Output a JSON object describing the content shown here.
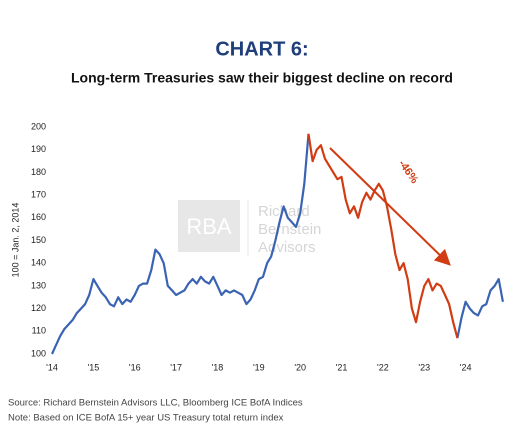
{
  "chart_data": {
    "type": "line",
    "title": "CHART 6:",
    "subtitle": "Long-term Treasuries saw their biggest decline on record",
    "y_label": "100 = Jan. 2, 2014",
    "annotation": "-46%",
    "watermark": [
      "RBA",
      "Richard",
      "Bernstein",
      "Advisors"
    ],
    "notes": [
      "Source: Richard Bernstein Advisors LLC, Bloomberg ICE BofA Indices",
      "Note: Based on ICE BofA 15+ year US Treasury total return index"
    ],
    "x": [
      2014.0,
      2014.1,
      2014.2,
      2014.3,
      2014.4,
      2014.5,
      2014.6,
      2014.7,
      2014.8,
      2014.9,
      2015.0,
      2015.1,
      2015.2,
      2015.3,
      2015.4,
      2015.5,
      2015.6,
      2015.7,
      2015.8,
      2015.9,
      2016.0,
      2016.1,
      2016.2,
      2016.3,
      2016.4,
      2016.5,
      2016.6,
      2016.7,
      2016.8,
      2016.9,
      2017.0,
      2017.1,
      2017.2,
      2017.3,
      2017.4,
      2017.5,
      2017.6,
      2017.7,
      2017.8,
      2017.9,
      2018.0,
      2018.1,
      2018.2,
      2018.3,
      2018.4,
      2018.5,
      2018.6,
      2018.7,
      2018.8,
      2018.9,
      2019.0,
      2019.1,
      2019.2,
      2019.3,
      2019.4,
      2019.5,
      2019.6,
      2019.7,
      2019.8,
      2019.9,
      2020.0,
      2020.1,
      2020.2,
      2020.3,
      2020.4,
      2020.5,
      2020.6,
      2020.7,
      2020.8,
      2020.9,
      2021.0,
      2021.1,
      2021.2,
      2021.3,
      2021.4,
      2021.5,
      2021.6,
      2021.7,
      2021.8,
      2021.9,
      2022.0,
      2022.1,
      2022.2,
      2022.3,
      2022.4,
      2022.5,
      2022.6,
      2022.7,
      2022.8,
      2022.9,
      2023.0,
      2023.1,
      2023.2,
      2023.3,
      2023.4,
      2023.5,
      2023.6,
      2023.7,
      2023.8,
      2023.9,
      2024.0,
      2024.1,
      2024.2,
      2024.3,
      2024.4,
      2024.5,
      2024.6,
      2024.7,
      2024.8,
      2024.9
    ],
    "series": [
      {
        "color": "#3b63b3",
        "values": [
          100,
          104,
          108,
          111,
          113,
          115,
          118,
          120,
          122,
          126,
          133,
          130,
          127,
          125,
          122,
          121,
          125,
          122,
          124,
          123,
          126,
          130,
          131,
          131,
          137,
          146,
          144,
          140,
          130,
          128,
          126,
          127,
          128,
          131,
          133,
          131,
          134,
          132,
          131,
          134,
          130,
          126,
          128,
          127,
          128,
          127,
          126,
          122,
          124,
          128,
          133,
          134,
          140,
          143,
          150,
          158,
          165,
          160,
          158,
          156,
          162,
          175,
          197,
          null,
          null,
          null,
          null,
          null,
          null,
          null,
          null,
          null,
          null,
          null,
          null,
          null,
          null,
          null,
          null,
          null,
          null,
          null,
          null,
          null,
          null,
          null,
          null,
          null,
          null,
          null,
          null,
          null,
          null,
          null,
          null,
          null,
          null,
          null,
          107,
          116,
          123,
          120,
          118,
          117,
          121,
          122,
          128,
          130,
          133,
          123
        ]
      },
      {
        "color": "#d13c12",
        "values": [
          null,
          null,
          null,
          null,
          null,
          null,
          null,
          null,
          null,
          null,
          null,
          null,
          null,
          null,
          null,
          null,
          null,
          null,
          null,
          null,
          null,
          null,
          null,
          null,
          null,
          null,
          null,
          null,
          null,
          null,
          null,
          null,
          null,
          null,
          null,
          null,
          null,
          null,
          null,
          null,
          null,
          null,
          null,
          null,
          null,
          null,
          null,
          null,
          null,
          null,
          null,
          null,
          null,
          null,
          null,
          null,
          null,
          null,
          null,
          null,
          null,
          null,
          197,
          185,
          190,
          192,
          186,
          183,
          180,
          177,
          178,
          168,
          162,
          165,
          160,
          167,
          171,
          168,
          172,
          175,
          172,
          165,
          155,
          144,
          137,
          140,
          133,
          120,
          114,
          123,
          130,
          133,
          128,
          131,
          130,
          126,
          122,
          114,
          107,
          null,
          null,
          null,
          null,
          null,
          null,
          null,
          null,
          null,
          null,
          null
        ]
      }
    ],
    "xlim": [
      2014,
      2025
    ],
    "xticks": [
      {
        "value": 2014,
        "label": "'14"
      },
      {
        "value": 2015,
        "label": "'15"
      },
      {
        "value": 2016,
        "label": "'16"
      },
      {
        "value": 2017,
        "label": "'17"
      },
      {
        "value": 2018,
        "label": "'18"
      },
      {
        "value": 2019,
        "label": "'19"
      },
      {
        "value": 2020,
        "label": "'20"
      },
      {
        "value": 2021,
        "label": "'21"
      },
      {
        "value": 2022,
        "label": "'22"
      },
      {
        "value": 2023,
        "label": "'23"
      },
      {
        "value": 2024,
        "label": "'24"
      }
    ],
    "ylim": [
      100,
      200
    ],
    "yticks": [
      100,
      110,
      120,
      130,
      140,
      150,
      160,
      170,
      180,
      190,
      200
    ],
    "grid": false
  }
}
